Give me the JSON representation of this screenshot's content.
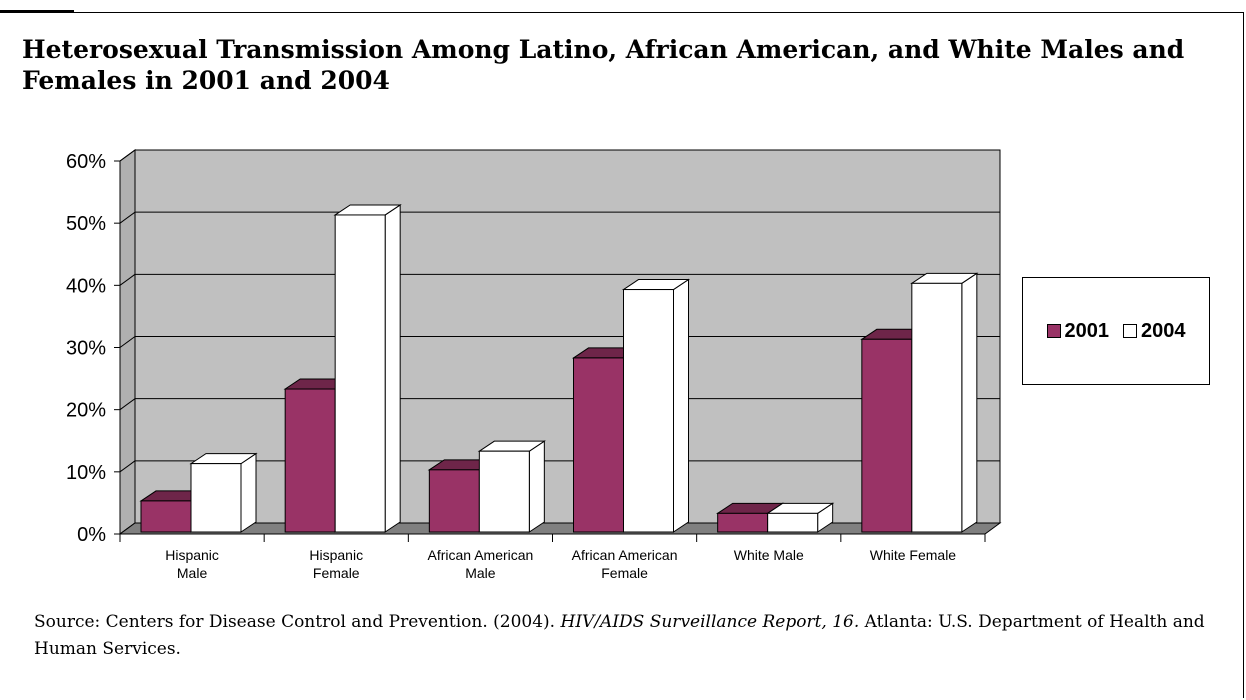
{
  "title": "Heterosexual Transmission Among Latino, African American, and White Males and Females in 2001 and 2004",
  "chart_data": {
    "type": "bar",
    "title": "Heterosexual Transmission Among Latino, African American, and White Males and Females in 2001 and 2004",
    "categories": [
      [
        "Hispanic",
        "Male"
      ],
      [
        "Hispanic",
        "Female"
      ],
      [
        "African American",
        "Male"
      ],
      [
        "African American",
        "Female"
      ],
      [
        "White Male"
      ],
      [
        "White Female"
      ]
    ],
    "series": [
      {
        "name": "2001",
        "values": [
          5,
          23,
          10,
          28,
          3,
          31
        ],
        "color": "#993366"
      },
      {
        "name": "2004",
        "values": [
          11,
          51,
          13,
          39,
          3,
          40
        ],
        "color": "#ffffff"
      }
    ],
    "ylim": [
      0,
      60
    ],
    "yticks": [
      "0%",
      "10%",
      "20%",
      "30%",
      "40%",
      "50%",
      "60%"
    ],
    "grid": true,
    "legend_position": "right",
    "plot_background": "#c0c0c0",
    "floor_color": "#808080"
  },
  "legend": {
    "items": [
      {
        "label": "2001"
      },
      {
        "label": "2004"
      }
    ]
  },
  "source": {
    "prefix": "Source:  Centers for Disease Control and Prevention. (2004). ",
    "italic": "HIV/AIDS Surveillance Report, 16.",
    "suffix": " Atlanta: U.S. Department of Health and Human Services."
  }
}
